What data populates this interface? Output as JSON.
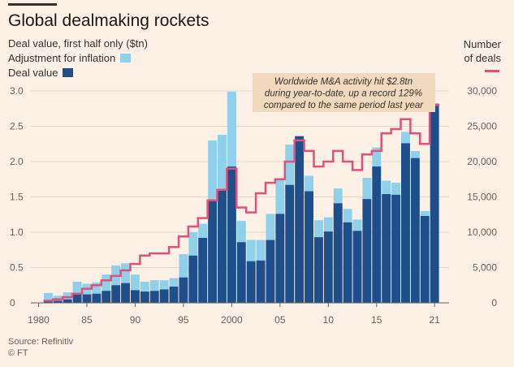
{
  "title": "Global dealmaking rockets",
  "left_axis_title": "Deal value, first half only ($tn)",
  "right_axis_title": [
    "Number",
    "of deals"
  ],
  "legend": {
    "inflation_label": "Adjustment for inflation",
    "value_label": "Deal value"
  },
  "annotation": [
    "Worldwide M&A activity hit $2.8tn",
    "during year-to-date, up a record 129%",
    "compared to the same period last year"
  ],
  "source": "Source: Refinitiv",
  "credit": "© FT",
  "colors": {
    "background": "#fdf1e6",
    "deal_value": "#1e4f8b",
    "inflation": "#8fd0ea",
    "deals_line": "#e0517a",
    "annotation_box": "#f0d9bd",
    "grid": "#e2d6c9",
    "axis_text": "#66605c"
  },
  "chart_data": {
    "type": "bar",
    "x": [
      1981,
      1982,
      1983,
      1984,
      1985,
      1986,
      1987,
      1988,
      1989,
      1990,
      1991,
      1992,
      1993,
      1994,
      1995,
      1996,
      1997,
      1998,
      1999,
      2000,
      2001,
      2002,
      2003,
      2004,
      2005,
      2006,
      2007,
      2008,
      2009,
      2010,
      2011,
      2012,
      2013,
      2014,
      2015,
      2016,
      2017,
      2018,
      2019,
      2020,
      2021
    ],
    "x_ticks": [
      1980,
      1985,
      1990,
      1995,
      2000,
      2005,
      2010,
      2015,
      2021
    ],
    "x_tick_labels": [
      "1980",
      "85",
      "90",
      "95",
      "2000",
      "05",
      "10",
      "15",
      "21"
    ],
    "series": [
      {
        "name": "Deal value",
        "values": [
          0.03,
          0.03,
          0.05,
          0.12,
          0.12,
          0.13,
          0.17,
          0.25,
          0.28,
          0.18,
          0.16,
          0.17,
          0.19,
          0.23,
          0.36,
          0.67,
          0.92,
          1.44,
          1.6,
          1.93,
          0.86,
          0.59,
          0.6,
          0.89,
          1.26,
          1.67,
          2.36,
          1.58,
          0.93,
          1.01,
          1.41,
          1.14,
          1.02,
          1.47,
          1.93,
          1.54,
          1.53,
          2.26,
          2.05,
          1.23,
          2.82
        ]
      },
      {
        "name": "Adjustment for inflation",
        "values": [
          0.11,
          0.07,
          0.1,
          0.18,
          0.15,
          0.16,
          0.23,
          0.28,
          0.28,
          0.22,
          0.14,
          0.15,
          0.13,
          0.12,
          0.33,
          0.33,
          0.2,
          0.86,
          0.78,
          1.06,
          0.3,
          0.3,
          0.29,
          0.37,
          0.48,
          0.57,
          0.0,
          0.22,
          0.24,
          0.2,
          0.21,
          0.19,
          0.16,
          0.3,
          0.27,
          0.19,
          0.17,
          0.16,
          0.1,
          0.07,
          0.0
        ]
      },
      {
        "name": "Number of deals",
        "axis": "right",
        "values": [
          300,
          500,
          800,
          1300,
          2000,
          2500,
          3200,
          3800,
          4600,
          5500,
          6700,
          7000,
          7000,
          7900,
          9400,
          10800,
          12000,
          14500,
          16000,
          19000,
          13500,
          12800,
          15500,
          17000,
          17500,
          20000,
          23000,
          21500,
          19300,
          20000,
          21500,
          20000,
          18800,
          21000,
          21500,
          24000,
          24600,
          26000,
          24000,
          22500,
          28000
        ]
      }
    ],
    "ylim": [
      0,
      3.0
    ],
    "y_ticks": [
      0,
      0.5,
      1.0,
      1.5,
      2.0,
      2.5,
      3.0
    ],
    "y_tick_labels": [
      "0",
      "0.5",
      "1.0",
      "1.5",
      "2.0",
      "2.5",
      "3.0"
    ],
    "y2lim": [
      0,
      30000
    ],
    "y2_ticks": [
      0,
      5000,
      10000,
      15000,
      20000,
      25000,
      30000
    ],
    "y2_tick_labels": [
      "0",
      "5,000",
      "10,000",
      "15,000",
      "20,000",
      "25,000",
      "30,000"
    ],
    "grid": true
  }
}
